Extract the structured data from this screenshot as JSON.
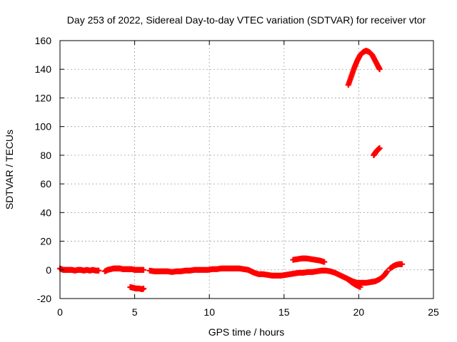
{
  "chart_data": {
    "type": "scatter",
    "title": "Day 253 of 2022, Sidereal Day-to-day VTEC variation (SDTVAR) for receiver vtor",
    "xlabel": "GPS time / hours",
    "ylabel": "SDTVAR / TECUs",
    "xlim": [
      0,
      25
    ],
    "ylim": [
      -20,
      160
    ],
    "xticks": [
      0,
      5,
      10,
      15,
      20,
      25
    ],
    "yticks": [
      -20,
      0,
      20,
      40,
      60,
      80,
      100,
      120,
      140,
      160
    ],
    "grid": true,
    "legend": "none",
    "marker": "plus",
    "color": "#ff0000",
    "series": [
      {
        "points": [
          [
            0.0,
            1
          ],
          [
            0.2,
            0
          ],
          [
            0.4,
            0
          ],
          [
            0.6,
            0
          ],
          [
            0.8,
            0
          ],
          [
            1.0,
            -0.5
          ],
          [
            1.2,
            0
          ],
          [
            1.4,
            0
          ],
          [
            1.6,
            -0.5
          ],
          [
            1.8,
            0
          ],
          [
            2.0,
            -0.5
          ],
          [
            2.2,
            0
          ],
          [
            2.4,
            -0.5
          ],
          [
            2.6,
            -0.5
          ],
          [
            3.0,
            -1
          ],
          [
            3.2,
            0
          ],
          [
            3.4,
            0.5
          ],
          [
            3.6,
            1
          ],
          [
            3.8,
            1
          ],
          [
            4.0,
            1
          ],
          [
            4.2,
            0.5
          ],
          [
            4.4,
            0.5
          ],
          [
            4.6,
            0.5
          ],
          [
            4.8,
            0.5
          ],
          [
            5.0,
            0
          ],
          [
            5.2,
            0
          ],
          [
            5.4,
            0
          ],
          [
            5.6,
            0
          ],
          [
            4.7,
            -12
          ],
          [
            4.9,
            -12.5
          ],
          [
            5.1,
            -13
          ],
          [
            5.3,
            -13
          ],
          [
            5.5,
            -13.5
          ],
          [
            5.6,
            -13
          ],
          [
            6.0,
            -0.5
          ],
          [
            6.3,
            -1
          ],
          [
            6.6,
            -1
          ],
          [
            6.9,
            -1
          ],
          [
            7.2,
            -1
          ],
          [
            7.5,
            -1.5
          ],
          [
            7.8,
            -1
          ],
          [
            8.1,
            -1
          ],
          [
            8.4,
            -0.5
          ],
          [
            8.7,
            -0.5
          ],
          [
            9.0,
            0
          ],
          [
            9.3,
            0
          ],
          [
            9.6,
            0
          ],
          [
            9.9,
            0
          ],
          [
            10.2,
            0.5
          ],
          [
            10.5,
            0.5
          ],
          [
            10.8,
            1
          ],
          [
            11.1,
            1
          ],
          [
            11.4,
            1
          ],
          [
            11.7,
            1
          ],
          [
            12.0,
            1
          ],
          [
            12.3,
            0.5
          ],
          [
            12.6,
            0
          ],
          [
            12.8,
            -1
          ],
          [
            13.0,
            -2
          ],
          [
            13.3,
            -3
          ],
          [
            13.6,
            -3
          ],
          [
            13.9,
            -3.5
          ],
          [
            14.2,
            -4
          ],
          [
            14.5,
            -4
          ],
          [
            14.8,
            -4
          ],
          [
            15.1,
            -3.5
          ],
          [
            15.4,
            -3
          ],
          [
            15.7,
            -2.5
          ],
          [
            16.0,
            -2
          ],
          [
            16.3,
            -2
          ],
          [
            16.6,
            -1.5
          ],
          [
            16.9,
            -1.5
          ],
          [
            17.2,
            -1
          ],
          [
            17.5,
            -0.5
          ],
          [
            17.8,
            -0.5
          ],
          [
            18.1,
            -1
          ],
          [
            18.4,
            -2
          ],
          [
            18.7,
            -3.5
          ],
          [
            19.0,
            -5
          ],
          [
            19.3,
            -6.5
          ],
          [
            19.6,
            -8
          ],
          [
            19.9,
            -9
          ],
          [
            20.2,
            -9
          ],
          [
            20.5,
            -9
          ],
          [
            20.8,
            -8.5
          ],
          [
            21.1,
            -8
          ],
          [
            21.4,
            -6.5
          ],
          [
            21.7,
            -4
          ],
          [
            21.9,
            -1
          ],
          [
            15.6,
            7
          ],
          [
            15.9,
            7.5
          ],
          [
            16.2,
            8
          ],
          [
            16.5,
            8
          ],
          [
            16.8,
            7.5
          ],
          [
            17.1,
            7
          ],
          [
            17.4,
            6.5
          ],
          [
            17.7,
            5.5
          ],
          [
            19.2,
            -6
          ],
          [
            19.5,
            -8.5
          ],
          [
            19.8,
            -10.5
          ],
          [
            20.1,
            -12
          ],
          [
            22.1,
            1
          ],
          [
            22.3,
            2.5
          ],
          [
            22.5,
            3.5
          ],
          [
            22.7,
            4
          ],
          [
            22.9,
            4
          ],
          [
            19.3,
            129
          ],
          [
            19.5,
            135
          ],
          [
            19.7,
            141
          ],
          [
            19.9,
            146
          ],
          [
            20.1,
            150
          ],
          [
            20.3,
            152
          ],
          [
            20.5,
            153
          ],
          [
            20.7,
            152
          ],
          [
            20.9,
            150
          ],
          [
            21.1,
            146
          ],
          [
            21.3,
            142
          ],
          [
            21.4,
            140
          ],
          [
            21.0,
            80
          ],
          [
            21.1,
            81.5
          ],
          [
            21.2,
            83
          ],
          [
            21.3,
            84
          ],
          [
            21.4,
            85
          ]
        ]
      }
    ]
  }
}
